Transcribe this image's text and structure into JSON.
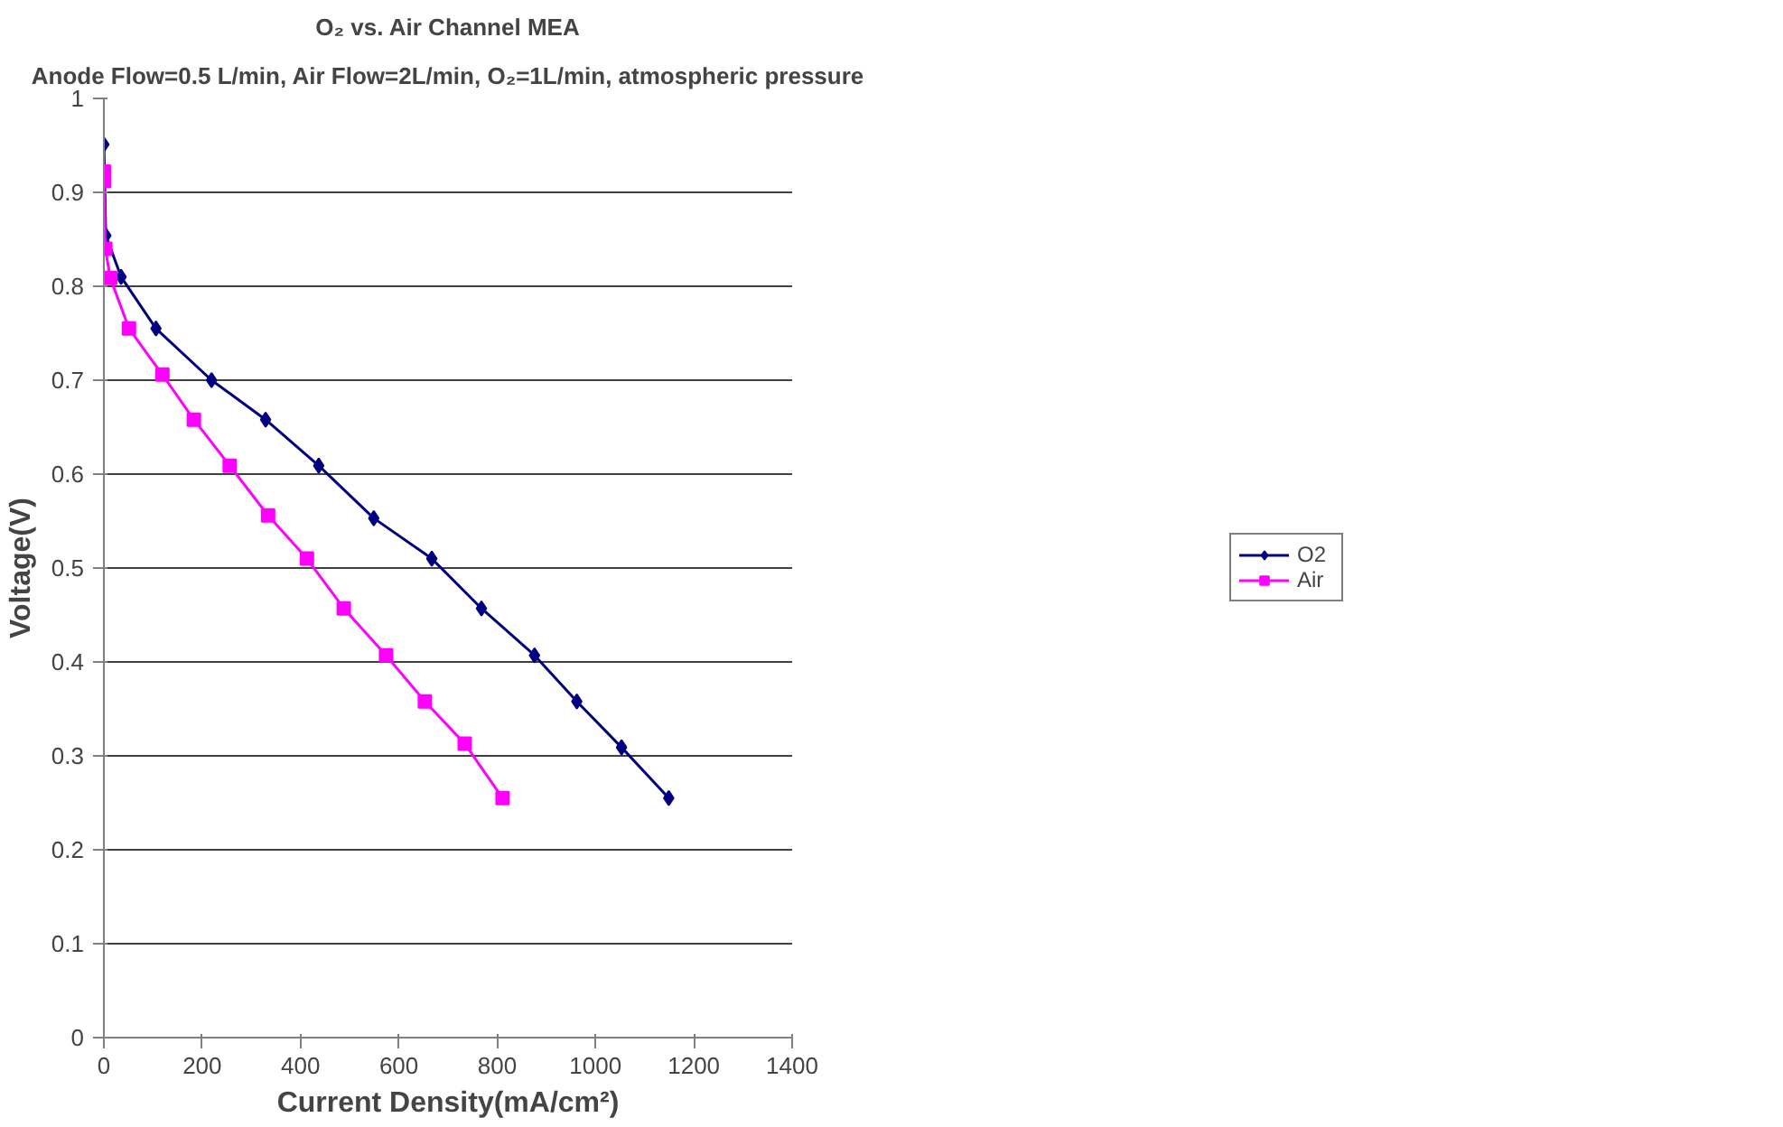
{
  "chart_data": {
    "type": "line",
    "title": "O₂ vs. Air Channel MEA",
    "subtitle": "Anode Flow=0.5 L/min, Air Flow=2L/min, O₂=1L/min, atmospheric pressure",
    "xlabel": "Current Density(mA/cm²)",
    "ylabel": "Voltage(V)",
    "series": [
      {
        "name": "O2",
        "color": "#000080",
        "marker": "diamond",
        "x": [
          0,
          4,
          35,
          106,
          219,
          329,
          437,
          549,
          667,
          768,
          876,
          962,
          1053,
          1149
        ],
        "values": [
          0.951,
          0.854,
          0.81,
          0.755,
          0.7,
          0.658,
          0.609,
          0.553,
          0.51,
          0.457,
          0.407,
          0.358,
          0.309,
          0.255
        ]
      },
      {
        "name": "Air",
        "color": "#ff00ff",
        "marker": "square",
        "x": [
          0,
          0,
          3,
          13,
          51,
          119,
          183,
          256,
          334,
          413,
          488,
          574,
          653,
          734,
          811
        ],
        "values": [
          0.922,
          0.912,
          0.84,
          0.809,
          0.755,
          0.706,
          0.658,
          0.609,
          0.556,
          0.51,
          0.457,
          0.407,
          0.358,
          0.313,
          0.255
        ]
      }
    ],
    "xlim": [
      0,
      1400
    ],
    "xticks": [
      0,
      200,
      400,
      600,
      800,
      1000,
      1200,
      1400
    ],
    "ylim": [
      0,
      1
    ],
    "yticks": [
      0,
      0.1,
      0.2,
      0.3,
      0.4,
      0.5,
      0.6,
      0.7,
      0.8,
      0.9,
      1
    ],
    "grid": "y",
    "legend": "right",
    "line_style": "solid"
  }
}
